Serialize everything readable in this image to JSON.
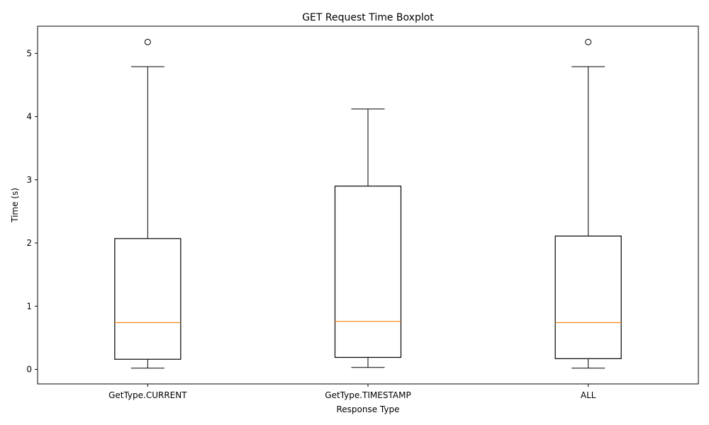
{
  "chart_data": {
    "type": "boxplot",
    "title": "GET Request Time Boxplot",
    "xlabel": "Response Type",
    "ylabel": "Time (s)",
    "ylim": [
      -0.23,
      5.43
    ],
    "yticks": [
      0,
      1,
      2,
      3,
      4,
      5
    ],
    "grid": false,
    "categories": [
      "GetType.CURRENT",
      "GetType.TIMESTAMP",
      "ALL"
    ],
    "boxes": [
      {
        "whisker_low": 0.02,
        "q1": 0.16,
        "median": 0.74,
        "q3": 2.07,
        "whisker_high": 4.79,
        "outliers": [
          5.18
        ]
      },
      {
        "whisker_low": 0.03,
        "q1": 0.19,
        "median": 0.76,
        "q3": 2.9,
        "whisker_high": 4.12,
        "outliers": []
      },
      {
        "whisker_low": 0.02,
        "q1": 0.17,
        "median": 0.74,
        "q3": 2.11,
        "whisker_high": 4.79,
        "outliers": [
          5.18
        ]
      }
    ],
    "colors": {
      "box": "#000000",
      "median": "#ff7f0e",
      "outlier": "#000000"
    }
  }
}
